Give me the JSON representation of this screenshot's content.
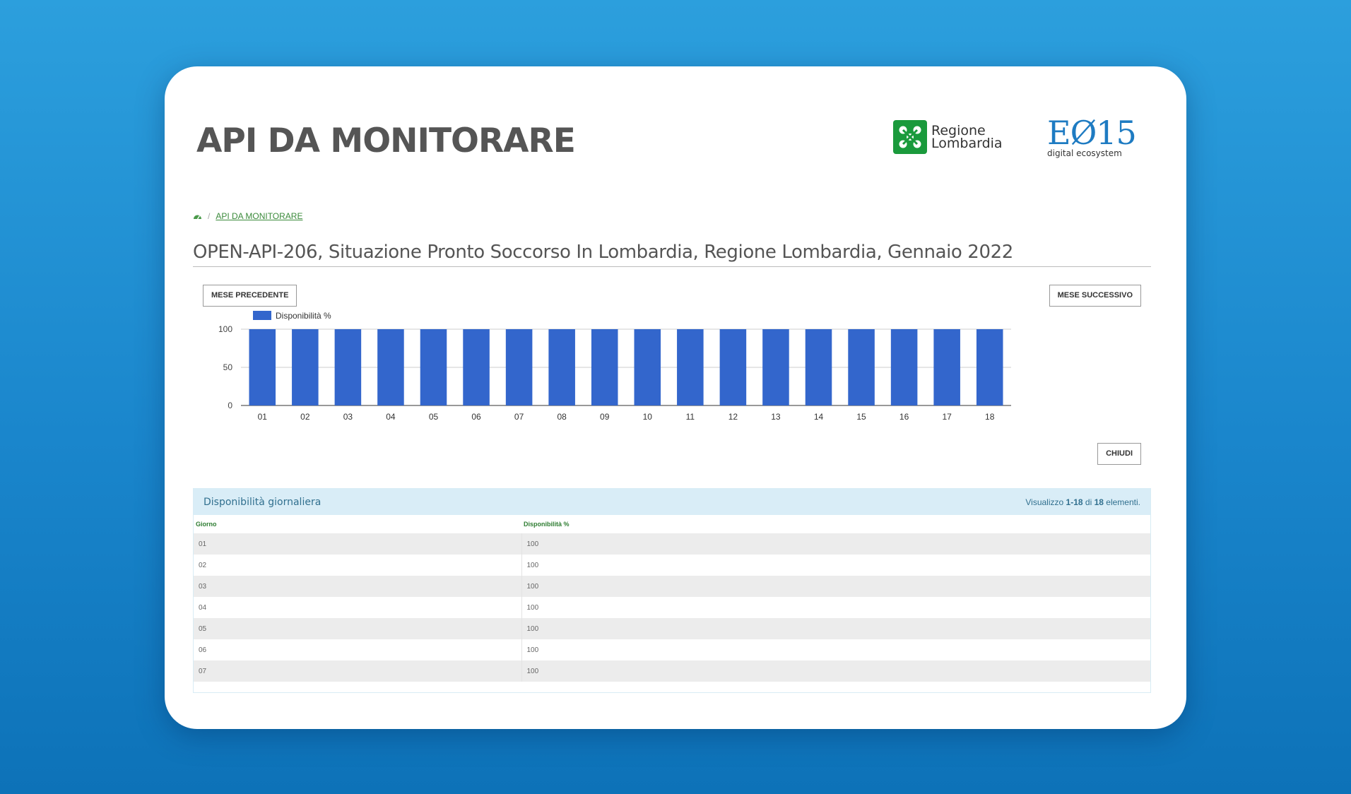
{
  "page": {
    "title": "API DA MONITORARE",
    "logos": {
      "regione_line1": "Regione",
      "regione_line2": "Lombardia",
      "e015_big": "EØ15",
      "e015_small": "digital ecosystem"
    }
  },
  "breadcrumb": {
    "home_icon": "dashboard-icon",
    "link": "API DA MONITORARE"
  },
  "heading": "OPEN-API-206, Situazione Pronto Soccorso In Lombardia, Regione Lombardia, Gennaio 2022",
  "buttons": {
    "prev": "MESE PRECEDENTE",
    "next": "MESE SUCCESSIVO",
    "close": "CHIUDI"
  },
  "chart_data": {
    "type": "bar",
    "categories": [
      "01",
      "02",
      "03",
      "04",
      "05",
      "06",
      "07",
      "08",
      "09",
      "10",
      "11",
      "12",
      "13",
      "14",
      "15",
      "16",
      "17",
      "18"
    ],
    "series": [
      {
        "name": "Disponibilità %",
        "color": "#3366cc",
        "values": [
          100,
          100,
          100,
          100,
          100,
          100,
          100,
          100,
          100,
          100,
          100,
          100,
          100,
          100,
          100,
          100,
          100,
          100
        ]
      }
    ],
    "ylim": [
      0,
      100
    ],
    "yticks": [
      0,
      50,
      100
    ],
    "legend": "top-left",
    "grid": true
  },
  "table": {
    "title": "Disponibilità giornaliera",
    "summary": {
      "prefix": "Visualizzo",
      "range": "1-18",
      "of": "di",
      "total": "18",
      "suffix": "elementi."
    },
    "columns": [
      "Giorno",
      "Disponibilità %"
    ],
    "rows": [
      [
        "01",
        "100"
      ],
      [
        "02",
        "100"
      ],
      [
        "03",
        "100"
      ],
      [
        "04",
        "100"
      ],
      [
        "05",
        "100"
      ],
      [
        "06",
        "100"
      ],
      [
        "07",
        "100"
      ]
    ]
  },
  "colors": {
    "accent": "#3366cc",
    "link": "#3a8a3a",
    "panel": "#d9edf7"
  }
}
